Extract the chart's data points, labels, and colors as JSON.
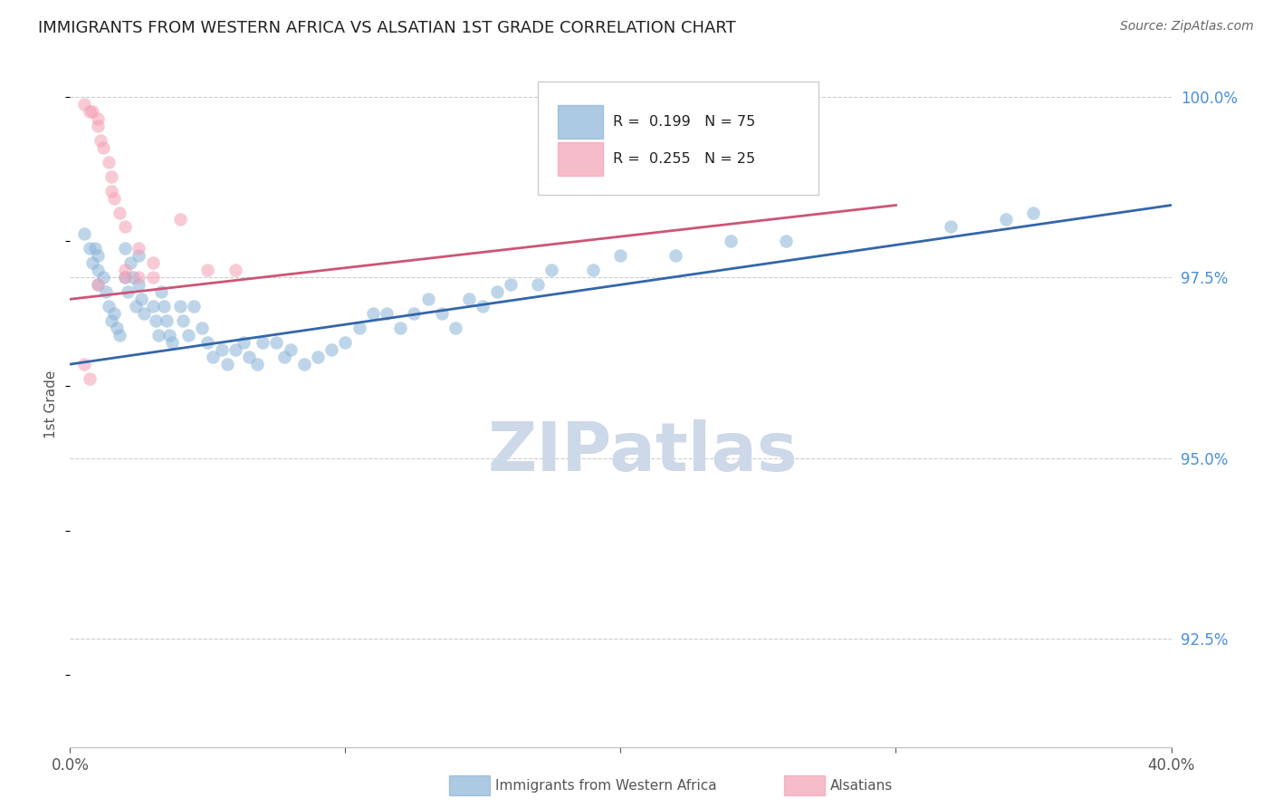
{
  "title": "IMMIGRANTS FROM WESTERN AFRICA VS ALSATIAN 1ST GRADE CORRELATION CHART",
  "source": "Source: ZipAtlas.com",
  "ylabel_label": "1st Grade",
  "xlim": [
    0.0,
    0.4
  ],
  "ylim": [
    0.91,
    1.005
  ],
  "ytick_vals": [
    0.925,
    0.95,
    0.975,
    1.0
  ],
  "ytick_labels": [
    "92.5%",
    "95.0%",
    "97.5%",
    "100.0%"
  ],
  "xtick_vals": [
    0.0,
    0.1,
    0.2,
    0.3,
    0.4
  ],
  "xtick_labels": [
    "0.0%",
    "",
    "",
    "",
    "40.0%"
  ],
  "blue_R": 0.199,
  "blue_N": 75,
  "pink_R": 0.255,
  "pink_N": 25,
  "blue_color": "#8ab4d8",
  "pink_color": "#f4a0b4",
  "blue_line_color": "#3366aa",
  "pink_line_color": "#cc5577",
  "background_color": "#ffffff",
  "grid_color": "#cccccc",
  "watermark_color": "#cdd8e8",
  "blue_trendline_x": [
    0.0,
    0.4
  ],
  "blue_trendline_y": [
    0.963,
    0.985
  ],
  "pink_trendline_x": [
    0.0,
    0.3
  ],
  "pink_trendline_y": [
    0.972,
    0.985
  ],
  "blue_scatter_x": [
    0.005,
    0.007,
    0.008,
    0.009,
    0.01,
    0.01,
    0.01,
    0.012,
    0.013,
    0.014,
    0.015,
    0.016,
    0.017,
    0.018,
    0.02,
    0.02,
    0.021,
    0.022,
    0.023,
    0.024,
    0.025,
    0.025,
    0.026,
    0.027,
    0.03,
    0.031,
    0.032,
    0.033,
    0.034,
    0.035,
    0.036,
    0.037,
    0.04,
    0.041,
    0.043,
    0.045,
    0.048,
    0.05,
    0.052,
    0.055,
    0.057,
    0.06,
    0.063,
    0.065,
    0.068,
    0.07,
    0.075,
    0.078,
    0.08,
    0.085,
    0.09,
    0.095,
    0.1,
    0.105,
    0.11,
    0.115,
    0.12,
    0.125,
    0.13,
    0.135,
    0.14,
    0.145,
    0.15,
    0.155,
    0.16,
    0.17,
    0.175,
    0.19,
    0.2,
    0.22,
    0.24,
    0.26,
    0.32,
    0.34,
    0.35
  ],
  "blue_scatter_y": [
    0.981,
    0.979,
    0.977,
    0.979,
    0.976,
    0.974,
    0.978,
    0.975,
    0.973,
    0.971,
    0.969,
    0.97,
    0.968,
    0.967,
    0.979,
    0.975,
    0.973,
    0.977,
    0.975,
    0.971,
    0.978,
    0.974,
    0.972,
    0.97,
    0.971,
    0.969,
    0.967,
    0.973,
    0.971,
    0.969,
    0.967,
    0.966,
    0.971,
    0.969,
    0.967,
    0.971,
    0.968,
    0.966,
    0.964,
    0.965,
    0.963,
    0.965,
    0.966,
    0.964,
    0.963,
    0.966,
    0.966,
    0.964,
    0.965,
    0.963,
    0.964,
    0.965,
    0.966,
    0.968,
    0.97,
    0.97,
    0.968,
    0.97,
    0.972,
    0.97,
    0.968,
    0.972,
    0.971,
    0.973,
    0.974,
    0.974,
    0.976,
    0.976,
    0.978,
    0.978,
    0.98,
    0.98,
    0.982,
    0.983,
    0.984
  ],
  "pink_scatter_x": [
    0.005,
    0.007,
    0.008,
    0.01,
    0.01,
    0.011,
    0.012,
    0.014,
    0.015,
    0.015,
    0.016,
    0.018,
    0.02,
    0.025,
    0.03,
    0.04,
    0.05,
    0.06,
    0.02,
    0.025,
    0.005,
    0.007,
    0.03,
    0.02,
    0.01
  ],
  "pink_scatter_y": [
    0.999,
    0.998,
    0.998,
    0.997,
    0.996,
    0.994,
    0.993,
    0.991,
    0.989,
    0.987,
    0.986,
    0.984,
    0.982,
    0.979,
    0.977,
    0.983,
    0.976,
    0.976,
    0.976,
    0.975,
    0.963,
    0.961,
    0.975,
    0.975,
    0.974
  ]
}
